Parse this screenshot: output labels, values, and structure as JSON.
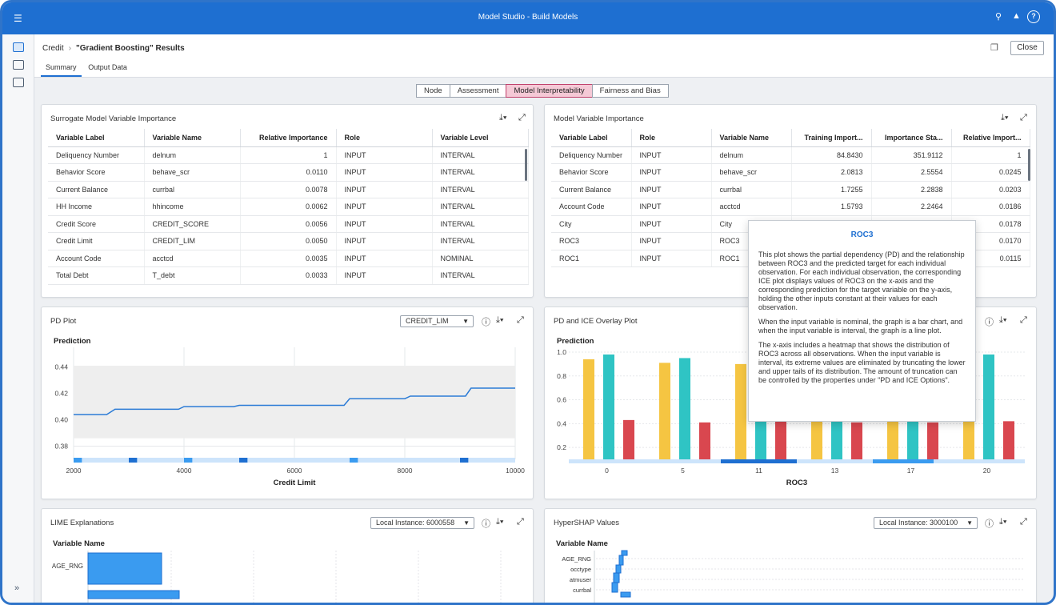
{
  "app": {
    "title": "Model Studio - Build Models",
    "colors": {
      "brand": "#1e6fd1",
      "accent_pink": "#c0416c",
      "gold": "#f5c542",
      "teal": "#2fc4c4",
      "red": "#d9474f"
    }
  },
  "header": {
    "breadcrumb_root": "Credit",
    "breadcrumb_current": "\"Gradient Boosting\" Results",
    "close_label": "Close",
    "tabs": [
      "Summary",
      "Output Data"
    ]
  },
  "segments": [
    "Node",
    "Assessment",
    "Model Interpretability",
    "Fairness and Bias"
  ],
  "surrogate": {
    "title": "Surrogate Model Variable Importance",
    "columns": [
      "Variable Label",
      "Variable Name",
      "Relative Importance",
      "Role",
      "Variable Level"
    ],
    "rows": [
      [
        "Deliquency Number",
        "delnum",
        "1",
        "INPUT",
        "INTERVAL"
      ],
      [
        "Behavior Score",
        "behave_scr",
        "0.0110",
        "INPUT",
        "INTERVAL"
      ],
      [
        "Current Balance",
        "currbal",
        "0.0078",
        "INPUT",
        "INTERVAL"
      ],
      [
        "HH Income",
        "hhincome",
        "0.0062",
        "INPUT",
        "INTERVAL"
      ],
      [
        "Credit Score",
        "CREDIT_SCORE",
        "0.0056",
        "INPUT",
        "INTERVAL"
      ],
      [
        "Credit Limit",
        "CREDIT_LIM",
        "0.0050",
        "INPUT",
        "INTERVAL"
      ],
      [
        "Account Code",
        "acctcd",
        "0.0035",
        "INPUT",
        "NOMINAL"
      ],
      [
        "Total Debt",
        "T_debt",
        "0.0033",
        "INPUT",
        "INTERVAL"
      ]
    ]
  },
  "modelvi": {
    "title": "Model Variable Importance",
    "columns": [
      "Variable Label",
      "Role",
      "Variable Name",
      "Training Import...",
      "Importance Sta...",
      "Relative Import..."
    ],
    "rows": [
      [
        "Deliquency Number",
        "INPUT",
        "delnum",
        "84.8430",
        "351.9112",
        "1"
      ],
      [
        "Behavior Score",
        "INPUT",
        "behave_scr",
        "2.0813",
        "2.5554",
        "0.0245"
      ],
      [
        "Current Balance",
        "INPUT",
        "currbal",
        "1.7255",
        "2.2838",
        "0.0203"
      ],
      [
        "Account Code",
        "INPUT",
        "acctcd",
        "1.5793",
        "2.2464",
        "0.0186"
      ],
      [
        "City",
        "INPUT",
        "City",
        "",
        "",
        "0.0178"
      ],
      [
        "ROC3",
        "INPUT",
        "ROC3",
        "",
        "",
        "0.0170"
      ],
      [
        "ROC1",
        "INPUT",
        "ROC1",
        "",
        "",
        "0.0115"
      ]
    ]
  },
  "tooltip": {
    "title": "ROC3",
    "p1": "This plot shows the partial dependency (PD) and the relationship between ROC3 and the predicted target for each individual observation. For each individual observation, the corresponding ICE plot displays values of ROC3 on the x-axis and the corresponding prediction for the target variable on the y-axis, holding the other inputs constant at their values for each observation.",
    "p2": "When the input variable is nominal, the graph is a bar chart, and when the input variable is interval, the graph is a line plot.",
    "p3": "The x-axis includes a heatmap that shows the distribution of ROC3 across all observations. When the input variable is interval, its extreme values are eliminated by truncating the lower and upper tails of its distribution. The amount of truncation can be controlled by the properties under \"PD and ICE Options\"."
  },
  "pdplot": {
    "title": "PD Plot",
    "dropdown_value": "CREDIT_LIM"
  },
  "iceplot": {
    "title": "PD and ICE Overlay Plot"
  },
  "lime": {
    "title": "LIME Explanations",
    "dropdown_value": "Local Instance: 6000558",
    "ylabel": "Variable Name",
    "labels": [
      "AGE_RNG"
    ]
  },
  "shap": {
    "title": "HyperSHAP Values",
    "dropdown_value": "Local Instance: 3000100",
    "ylabel": "Variable Name",
    "labels": [
      "AGE_RNG",
      "occtype",
      "atmuser",
      "currbal"
    ]
  },
  "chart_data": [
    {
      "type": "line",
      "title": "PD Plot",
      "xlabel": "Credit Limit",
      "ylabel": "Prediction",
      "xlim": [
        2000,
        10000
      ],
      "ylim": [
        0.37,
        0.455
      ],
      "xticks": [
        "2000",
        "4000",
        "6000",
        "8000",
        "10000"
      ],
      "yticks": [
        "0.38",
        "0.40",
        "0.42",
        "0.44"
      ],
      "x": [
        2000,
        2600,
        2750,
        3900,
        4000,
        4900,
        5000,
        6900,
        7000,
        8000,
        8100,
        9100,
        9200,
        10000
      ],
      "y": [
        0.404,
        0.404,
        0.408,
        0.408,
        0.41,
        0.41,
        0.411,
        0.411,
        0.416,
        0.416,
        0.418,
        0.418,
        0.424,
        0.424
      ],
      "band_low": 0.386,
      "band_high": 0.441
    },
    {
      "type": "bar",
      "title": "PD and ICE Overlay Plot",
      "xlabel": "ROC3",
      "ylabel": "Prediction",
      "categories": [
        "0",
        "5",
        "11",
        "13",
        "17",
        "20"
      ],
      "ylim": [
        0.1,
        1.0
      ],
      "yticks": [
        "0.2",
        "0.4",
        "0.6",
        "0.8",
        "1.0"
      ],
      "series": [
        {
          "name": "gold",
          "values": [
            0.94,
            0.91,
            0.9,
            0.9,
            0.9,
            0.9
          ]
        },
        {
          "name": "teal",
          "values": [
            0.98,
            0.95,
            0.5,
            0.5,
            0.5,
            0.98
          ]
        },
        {
          "name": "red",
          "values": [
            0.43,
            0.41,
            0.42,
            0.41,
            0.41,
            0.42
          ]
        }
      ]
    }
  ]
}
